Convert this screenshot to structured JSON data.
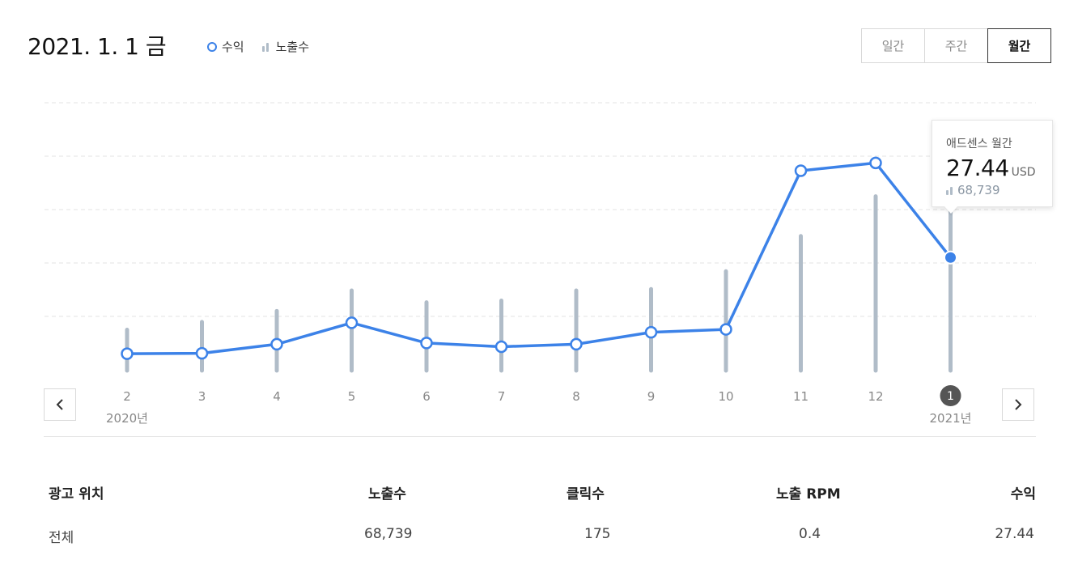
{
  "header": {
    "date_label": "2021. 1. 1 금",
    "legend": {
      "revenue_label": "수익",
      "impressions_label": "노출수"
    },
    "period_tabs": [
      {
        "label": "일간",
        "active": false
      },
      {
        "label": "주간",
        "active": false
      },
      {
        "label": "월간",
        "active": true
      }
    ]
  },
  "colors": {
    "line": "#3c82e8",
    "bars": "#b0bcc8",
    "grid": "#e3e3e3",
    "selected_badge": "#555555"
  },
  "chart_data": {
    "type": "line",
    "categories": [
      "2",
      "3",
      "4",
      "5",
      "6",
      "7",
      "8",
      "9",
      "10",
      "11",
      "12",
      "1"
    ],
    "year_labels": [
      {
        "index": 0,
        "label": "2020년"
      },
      {
        "index": 11,
        "label": "2021년"
      }
    ],
    "selected_index": 11,
    "grid": true,
    "series": [
      {
        "name": "수익",
        "type": "line",
        "values": [
          4.1,
          4.2,
          6.4,
          11.6,
          6.7,
          5.8,
          6.4,
          9.3,
          10.0,
          48.5,
          50.4,
          27.44
        ]
      },
      {
        "name": "노출수",
        "type": "bar",
        "values": [
          14200,
          16900,
          20700,
          27800,
          23700,
          24300,
          27800,
          28300,
          34500,
          46700,
          60500,
          68739
        ]
      }
    ]
  },
  "tooltip": {
    "title": "애드센스 월간",
    "value": "27.44",
    "unit": "USD",
    "impressions": "68,739"
  },
  "nav": {
    "prev_icon": "chevron-left-icon",
    "next_icon": "chevron-right-icon"
  },
  "table": {
    "headers": [
      "광고 위치",
      "노출수",
      "클릭수",
      "노출 RPM",
      "수익"
    ],
    "rows": [
      [
        "전체",
        "68,739",
        "175",
        "0.4",
        "27.44"
      ]
    ]
  }
}
